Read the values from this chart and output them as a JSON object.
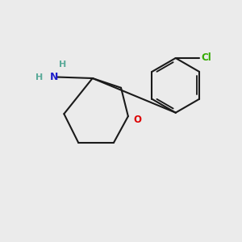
{
  "background_color": "#ebebeb",
  "bond_color": "#1a1a1a",
  "nitrogen_color": "#2020cc",
  "oxygen_color": "#dd0000",
  "chlorine_color": "#33aa00",
  "h_color": "#5aaa99",
  "N_label": "N",
  "H_label": "H",
  "O_label": "O",
  "Cl_label": "Cl",
  "figsize": [
    3.0,
    3.0
  ],
  "dpi": 100
}
